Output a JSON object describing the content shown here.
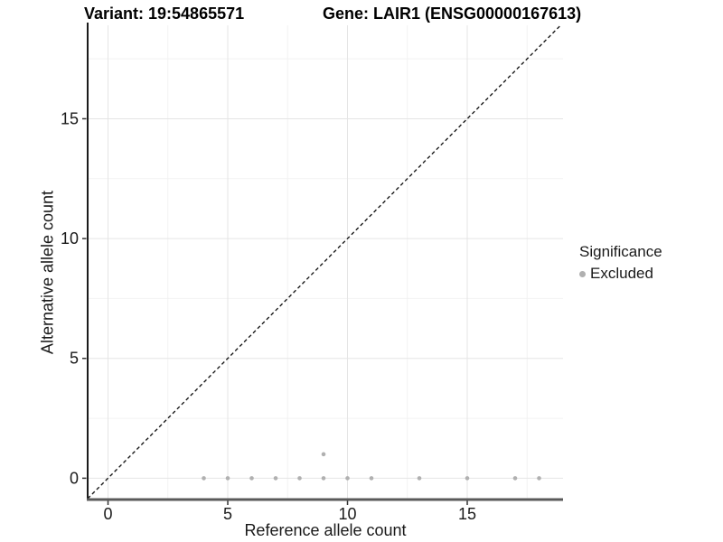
{
  "titles": {
    "variant": "Variant: 19:54865571",
    "gene": "Gene: LAIR1 (ENSG00000167613)"
  },
  "legend": {
    "title": "Significance",
    "items": [
      {
        "label": "Excluded",
        "color": "#b0b0b0"
      }
    ]
  },
  "colors": {
    "point": "#b0b0b0",
    "dashed_line": "#1a1a1a",
    "grid_major": "#e5e5e5",
    "grid_minor": "#f2f2f2",
    "axis_line_left": "#1b1b1b",
    "axis_line_bottom": "#5a5a5a",
    "tick": "#333333",
    "tick_label": "#1a1a1a"
  },
  "chart_data": {
    "type": "scatter",
    "title": "",
    "xlabel": "Reference allele count",
    "ylabel": "Alternative allele count",
    "xlim": [
      -0.85,
      19.0
    ],
    "ylim": [
      -0.89,
      18.9
    ],
    "x_ticks": [
      0,
      5,
      10,
      15
    ],
    "y_ticks": [
      0,
      5,
      10,
      15
    ],
    "x_minor": [
      2.5,
      7.5,
      12.5,
      17.5
    ],
    "y_minor": [
      2.5,
      7.5,
      12.5,
      17.5
    ],
    "grid": true,
    "legend_position": "right",
    "series": [
      {
        "name": "Excluded",
        "points": [
          {
            "x": 4,
            "y": 0
          },
          {
            "x": 5,
            "y": 0
          },
          {
            "x": 6,
            "y": 0
          },
          {
            "x": 7,
            "y": 0
          },
          {
            "x": 8,
            "y": 0
          },
          {
            "x": 9,
            "y": 0
          },
          {
            "x": 9,
            "y": 1
          },
          {
            "x": 10,
            "y": 0
          },
          {
            "x": 11,
            "y": 0
          },
          {
            "x": 13,
            "y": 0
          },
          {
            "x": 15,
            "y": 0
          },
          {
            "x": 17,
            "y": 0
          },
          {
            "x": 18,
            "y": 0
          }
        ]
      }
    ],
    "reference_line": {
      "type": "identity",
      "style": "dashed"
    }
  }
}
